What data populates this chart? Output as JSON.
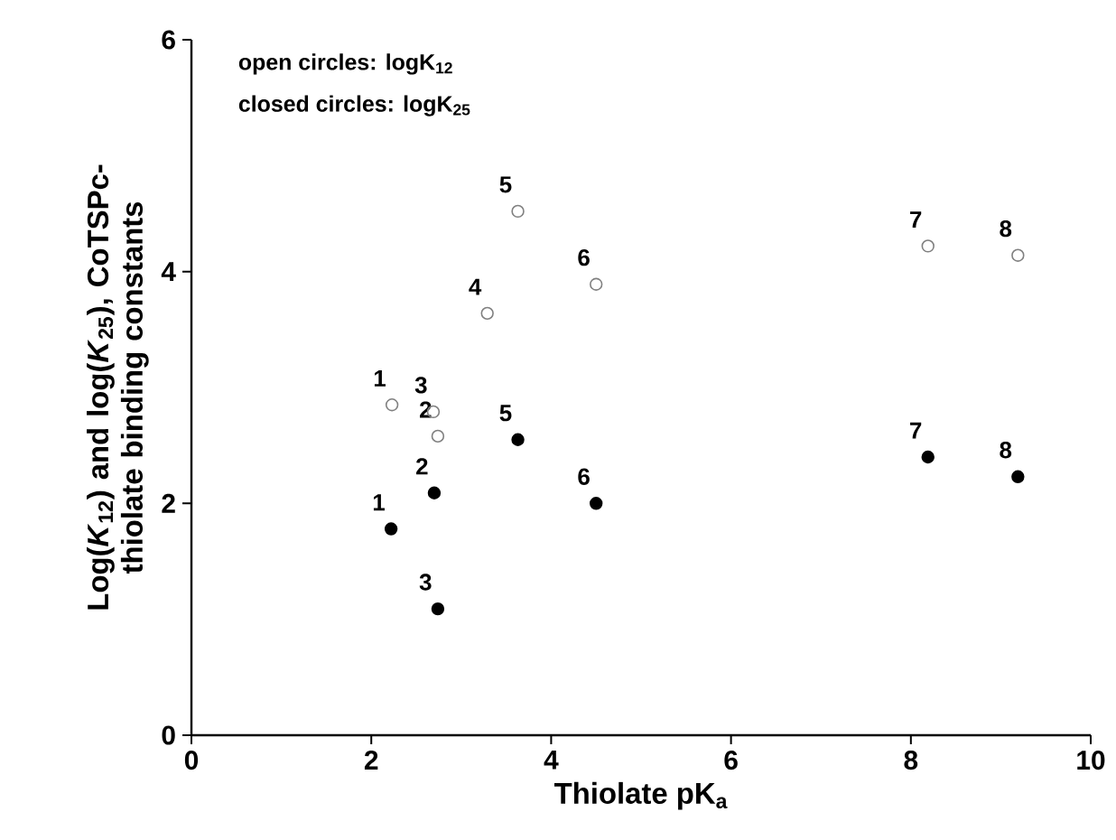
{
  "chart_data": {
    "type": "scatter",
    "xlabel": "Thiolate pK$_{a}$",
    "ylabel": "Log(*K*$_{12}$) and log(*K*$_{25}$), CoTSPc-thiolate binding constants",
    "xlim": [
      0,
      10
    ],
    "xticks": [
      0,
      2,
      4,
      6,
      8,
      10
    ],
    "ylim": [
      0,
      6
    ],
    "yticks": [
      0,
      2,
      4,
      6
    ],
    "grid": false,
    "marker": "circle",
    "series": [
      {
        "color": "#808080",
        "x": [
          2.23,
          2.74,
          2.69,
          3.29,
          3.63,
          4.5,
          8.19,
          9.19
        ],
        "values": [
          2.85,
          2.58,
          2.79,
          3.64,
          4.52,
          3.89,
          4.22,
          4.14
        ]
      },
      {
        "color": "#000000",
        "x": [
          2.22,
          2.7,
          2.74,
          3.63,
          4.5,
          8.19,
          9.19
        ],
        "values": [
          1.78,
          2.09,
          1.09,
          2.55,
          2.0,
          2.4,
          2.23
        ]
      }
    ],
    "annotations": [
      "open circles: logK$_{12}$",
      "closed circles: logK$_{25}$",
      "1",
      "2",
      "3",
      "4",
      "5",
      "6",
      "7",
      "8",
      "1",
      "2",
      "3",
      "5",
      "6",
      "7",
      "8"
    ]
  }
}
